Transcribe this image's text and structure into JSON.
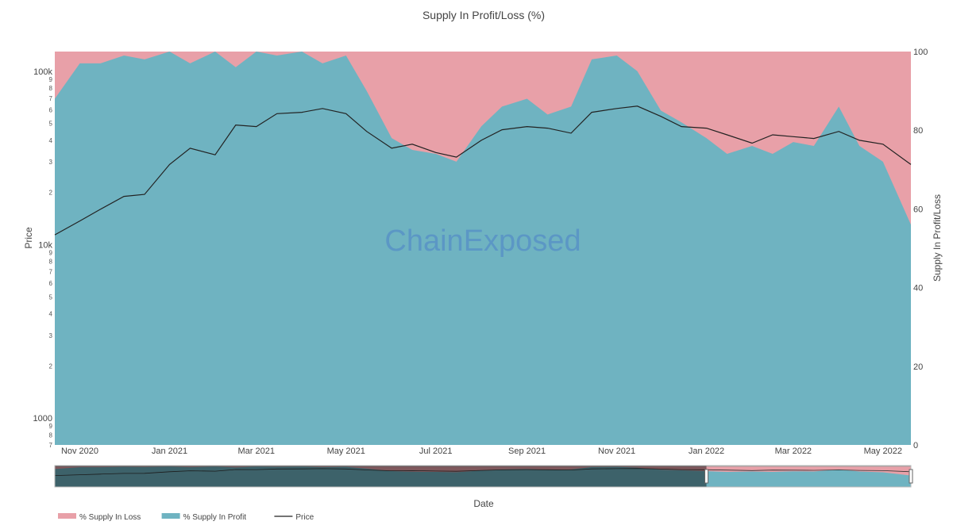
{
  "chart_data": {
    "type": "area",
    "title": "Supply In Profit/Loss (%)",
    "xlabel": "Date",
    "ylabel_left": "Price",
    "ylabel_right": "Supply In Profit/Loss",
    "watermark": "ChainExposed",
    "x_ticks": [
      "Nov 2020",
      "Jan 2021",
      "Mar 2021",
      "May 2021",
      "Jul 2021",
      "Sep 2021",
      "Nov 2021",
      "Jan 2022",
      "Mar 2022",
      "May 2022"
    ],
    "x_range": [
      "2020-10-15",
      "2022-05-20"
    ],
    "y_left": {
      "scale": "log",
      "range": [
        700,
        130000
      ],
      "major_ticks": [
        {
          "value": 1000,
          "label": "1000"
        },
        {
          "value": 10000,
          "label": "10k"
        },
        {
          "value": 100000,
          "label": "100k"
        }
      ],
      "minor_ticks": [
        {
          "value": 2000,
          "label": "2"
        },
        {
          "value": 3000,
          "label": "3"
        },
        {
          "value": 4000,
          "label": "4"
        },
        {
          "value": 5000,
          "label": "5"
        },
        {
          "value": 6000,
          "label": "6"
        },
        {
          "value": 7000,
          "label": "7"
        },
        {
          "value": 8000,
          "label": "8"
        },
        {
          "value": 9000,
          "label": "9"
        },
        {
          "value": 20000,
          "label": "2"
        },
        {
          "value": 30000,
          "label": "3"
        },
        {
          "value": 40000,
          "label": "4"
        },
        {
          "value": 50000,
          "label": "5"
        },
        {
          "value": 60000,
          "label": "6"
        },
        {
          "value": 70000,
          "label": "7"
        },
        {
          "value": 80000,
          "label": "8"
        },
        {
          "value": 90000,
          "label": "9"
        },
        {
          "value": 700,
          "label": "7"
        },
        {
          "value": 800,
          "label": "8"
        },
        {
          "value": 900,
          "label": "9"
        }
      ]
    },
    "y_right": {
      "range": [
        0,
        100
      ],
      "ticks": [
        0,
        20,
        40,
        60,
        80,
        100
      ]
    },
    "legend": {
      "position": "bottom-left",
      "items": [
        {
          "name": "% Supply In Loss",
          "color": "#e8a0a8",
          "kind": "area"
        },
        {
          "name": "% Supply In Profit",
          "color": "#6fb3c1",
          "kind": "area"
        },
        {
          "name": "Price",
          "color": "#222222",
          "kind": "line"
        }
      ]
    },
    "colors": {
      "loss": "#e8a0a8",
      "profit": "#6fb3c1",
      "price": "#222222"
    },
    "series": [
      {
        "name": "% Supply In Profit",
        "x": [
          "2020-10-15",
          "2020-11-01",
          "2020-11-15",
          "2020-12-01",
          "2020-12-15",
          "2021-01-01",
          "2021-01-15",
          "2021-02-01",
          "2021-02-15",
          "2021-03-01",
          "2021-03-15",
          "2021-04-01",
          "2021-04-15",
          "2021-05-01",
          "2021-05-15",
          "2021-06-01",
          "2021-06-15",
          "2021-07-01",
          "2021-07-15",
          "2021-08-01",
          "2021-08-15",
          "2021-09-01",
          "2021-09-15",
          "2021-10-01",
          "2021-10-15",
          "2021-11-01",
          "2021-11-15",
          "2021-12-01",
          "2021-12-15",
          "2022-01-01",
          "2022-01-15",
          "2022-02-01",
          "2022-02-15",
          "2022-03-01",
          "2022-03-15",
          "2022-04-01",
          "2022-04-15",
          "2022-05-01",
          "2022-05-20"
        ],
        "values": [
          88,
          97,
          97,
          99,
          98,
          100,
          97,
          100,
          96,
          100,
          99,
          100,
          97,
          99,
          90,
          78,
          75,
          74,
          72,
          81,
          86,
          88,
          84,
          86,
          98,
          99,
          95,
          85,
          82,
          78,
          74,
          76,
          74,
          77,
          76,
          86,
          76,
          72,
          56
        ]
      },
      {
        "name": "% Supply In Loss",
        "x": [
          "2020-10-15",
          "2020-11-01",
          "2020-11-15",
          "2020-12-01",
          "2020-12-15",
          "2021-01-01",
          "2021-01-15",
          "2021-02-01",
          "2021-02-15",
          "2021-03-01",
          "2021-03-15",
          "2021-04-01",
          "2021-04-15",
          "2021-05-01",
          "2021-05-15",
          "2021-06-01",
          "2021-06-15",
          "2021-07-01",
          "2021-07-15",
          "2021-08-01",
          "2021-08-15",
          "2021-09-01",
          "2021-09-15",
          "2021-10-01",
          "2021-10-15",
          "2021-11-01",
          "2021-11-15",
          "2021-12-01",
          "2021-12-15",
          "2022-01-01",
          "2022-01-15",
          "2022-02-01",
          "2022-02-15",
          "2022-03-01",
          "2022-03-15",
          "2022-04-01",
          "2022-04-15",
          "2022-05-01",
          "2022-05-20"
        ],
        "values": [
          12,
          3,
          3,
          1,
          2,
          0,
          3,
          0,
          4,
          0,
          1,
          0,
          3,
          1,
          10,
          22,
          25,
          26,
          28,
          19,
          14,
          12,
          16,
          14,
          2,
          1,
          5,
          15,
          18,
          22,
          26,
          24,
          26,
          23,
          24,
          14,
          24,
          28,
          44
        ]
      },
      {
        "name": "Price",
        "x": [
          "2020-10-15",
          "2020-11-01",
          "2020-11-15",
          "2020-12-01",
          "2020-12-15",
          "2021-01-01",
          "2021-01-15",
          "2021-02-01",
          "2021-02-15",
          "2021-03-01",
          "2021-03-15",
          "2021-04-01",
          "2021-04-15",
          "2021-05-01",
          "2021-05-15",
          "2021-06-01",
          "2021-06-15",
          "2021-07-01",
          "2021-07-15",
          "2021-08-01",
          "2021-08-15",
          "2021-09-01",
          "2021-09-15",
          "2021-10-01",
          "2021-10-15",
          "2021-11-01",
          "2021-11-15",
          "2021-12-01",
          "2021-12-15",
          "2022-01-01",
          "2022-01-15",
          "2022-02-01",
          "2022-02-15",
          "2022-03-01",
          "2022-03-15",
          "2022-04-01",
          "2022-04-15",
          "2022-05-01",
          "2022-05-20"
        ],
        "values": [
          11400,
          13700,
          16000,
          19000,
          19500,
          29000,
          36000,
          33000,
          49000,
          48000,
          57000,
          58000,
          61000,
          57000,
          45000,
          36000,
          38000,
          34000,
          32000,
          40000,
          46000,
          48000,
          47000,
          44000,
          58000,
          61000,
          63000,
          55000,
          48000,
          47000,
          43000,
          38500,
          43000,
          42000,
          41000,
          45000,
          40000,
          38000,
          29000
        ]
      }
    ],
    "range_slider": {
      "window": [
        "2022-01-01",
        "2022-05-20"
      ]
    }
  }
}
